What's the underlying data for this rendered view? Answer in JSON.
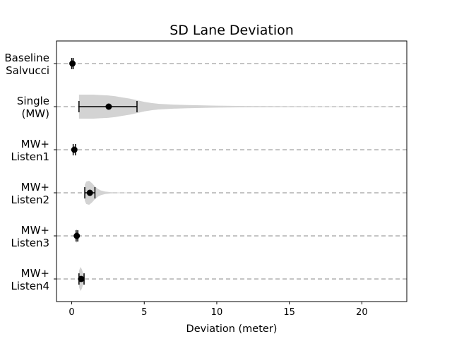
{
  "chart_data": {
    "type": "violin",
    "title": "SD Lane Deviation",
    "xlabel": "Deviation (meter)",
    "ylabel": "",
    "xlim": [
      -1.05,
      23.1
    ],
    "xticks": [
      0,
      5,
      10,
      15,
      20
    ],
    "grid": "horizontal dashed reference lines per category",
    "categories": [
      {
        "label_lines": [
          "Baseline",
          "Salvucci"
        ],
        "mean": 0.05,
        "ci": [
          0.0,
          0.1
        ],
        "range": [
          0.0,
          0.1
        ],
        "density": [
          [
            0.0,
            0.0
          ],
          [
            0.05,
            2
          ],
          [
            0.1,
            0.0
          ]
        ]
      },
      {
        "label_lines": [
          "Single",
          "(MW)"
        ],
        "mean": 2.55,
        "ci": [
          0.5,
          4.5
        ],
        "range": [
          0.5,
          22
        ],
        "density": [
          [
            0.5,
            15
          ],
          [
            1.0,
            15
          ],
          [
            1.5,
            15
          ],
          [
            2.0,
            14.5
          ],
          [
            2.5,
            14
          ],
          [
            3.0,
            13
          ],
          [
            3.5,
            11.5
          ],
          [
            4.0,
            10
          ],
          [
            4.5,
            8
          ],
          [
            5.0,
            6
          ],
          [
            5.5,
            4.5
          ],
          [
            6.0,
            3.5
          ],
          [
            7.0,
            2.5
          ],
          [
            8.0,
            2
          ],
          [
            10.0,
            1.2
          ],
          [
            12.0,
            0.8
          ],
          [
            15.0,
            0.5
          ],
          [
            18.0,
            0.3
          ],
          [
            22.0,
            0.2
          ]
        ]
      },
      {
        "label_lines": [
          "MW+",
          "Listen1"
        ],
        "mean": 0.18,
        "ci": [
          0.1,
          0.26
        ],
        "range": [
          0.05,
          0.3
        ],
        "density": [
          [
            0.05,
            0.5
          ],
          [
            0.15,
            4
          ],
          [
            0.2,
            4
          ],
          [
            0.3,
            0.5
          ]
        ]
      },
      {
        "label_lines": [
          "MW+",
          "Listen2"
        ],
        "mean": 1.25,
        "ci": [
          0.9,
          1.6
        ],
        "range": [
          0.9,
          5.0
        ],
        "density": [
          [
            0.9,
            10
          ],
          [
            1.0,
            14
          ],
          [
            1.2,
            15
          ],
          [
            1.4,
            12
          ],
          [
            1.6,
            8
          ],
          [
            1.8,
            5
          ],
          [
            2.0,
            3
          ],
          [
            2.3,
            1.5
          ],
          [
            2.7,
            0.8
          ],
          [
            3.2,
            0.4
          ],
          [
            4.0,
            0.2
          ],
          [
            5.0,
            0.1
          ]
        ]
      },
      {
        "label_lines": [
          "MW+",
          "Listen3"
        ],
        "mean": 0.35,
        "ci": [
          0.3,
          0.42
        ],
        "range": [
          0.25,
          0.5
        ],
        "density": [
          [
            0.25,
            0.5
          ],
          [
            0.3,
            6
          ],
          [
            0.35,
            9
          ],
          [
            0.4,
            6
          ],
          [
            0.5,
            0.5
          ]
        ]
      },
      {
        "label_lines": [
          "MW+",
          "Listen4"
        ],
        "mean": 0.65,
        "ci": [
          0.5,
          0.85
        ],
        "range": [
          0.5,
          0.95
        ],
        "density": [
          [
            0.5,
            10
          ],
          [
            0.6,
            15
          ],
          [
            0.7,
            12
          ],
          [
            0.8,
            6
          ],
          [
            0.9,
            2
          ],
          [
            0.95,
            0.5
          ]
        ]
      }
    ]
  }
}
